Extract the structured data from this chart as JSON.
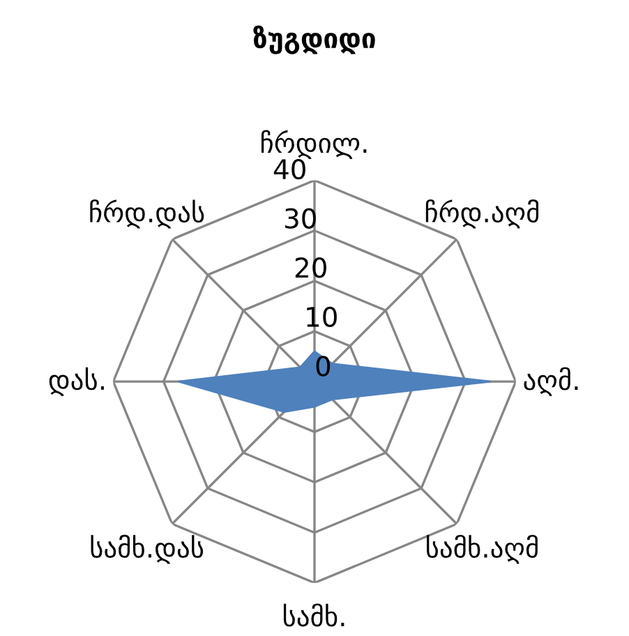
{
  "chart_data": {
    "type": "radar",
    "title": "ზუგდიდი",
    "categories": [
      "ჩრდილ.",
      "ჩრდ.აღმ",
      "აღმ.",
      "სამხ.აღმ",
      "სამხ.",
      "სამხ.დას",
      "დას.",
      "ჩრდ.დას"
    ],
    "series": [
      {
        "color": "#4f81bd",
        "values": [
          6,
          5,
          35,
          5,
          5,
          8.5,
          27,
          4
        ]
      }
    ],
    "ylim": [
      0,
      40
    ],
    "yticks": [
      0,
      10,
      20,
      30,
      40
    ],
    "grid": true,
    "legend": false
  }
}
